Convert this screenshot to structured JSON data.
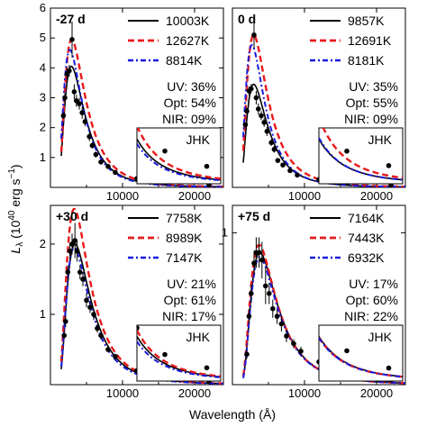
{
  "figure": {
    "xlabel": "Wavelength (Å)",
    "ylabel_main": "L",
    "ylabel_sub": "λ",
    "ylabel_rest": " (10",
    "ylabel_exp": "40",
    "ylabel_unit": " erg s",
    "ylabel_unit_exp": "−1",
    "ylabel_close": ")",
    "series_colors": [
      "#000000",
      "#e8191b",
      "#1a1adc"
    ],
    "inset_label": "JHK"
  },
  "chart_data": [
    {
      "type": "line",
      "epoch": "-27 d",
      "xlim": [
        0,
        24000
      ],
      "ylim": [
        0,
        6
      ],
      "yticks": [
        1,
        2,
        3,
        4,
        5,
        6
      ],
      "xticks": [
        10000,
        20000
      ],
      "xtick_labels": [
        "10000",
        "20000"
      ],
      "series": [
        {
          "name": "10003K",
          "temperature": 10003,
          "peak_lambda": 2900,
          "peak_value": 4.05
        },
        {
          "name": "12627K",
          "temperature": 12627,
          "peak_lambda": 2950,
          "peak_value": 4.95
        },
        {
          "name": "8814K",
          "temperature": 8814,
          "peak_lambda": 2700,
          "peak_value": 4.6
        }
      ],
      "fractions": {
        "UV": "UV: 36%",
        "Opt": "Opt: 54%",
        "NIR": "NIR: 09%"
      },
      "points": [
        [
          1800,
          2.4
        ],
        [
          2000,
          3.0
        ],
        [
          2300,
          3.8
        ],
        [
          2600,
          3.9
        ],
        [
          3000,
          4.95
        ],
        [
          3300,
          3.2
        ],
        [
          3600,
          2.9
        ],
        [
          4000,
          2.8
        ],
        [
          4400,
          2.5
        ],
        [
          4800,
          2.2
        ],
        [
          5400,
          1.7
        ],
        [
          5800,
          1.4
        ],
        [
          6300,
          1.1
        ],
        [
          7000,
          0.85
        ],
        [
          8000,
          0.7
        ],
        [
          9000,
          0.5
        ],
        [
          12000,
          0.3
        ],
        [
          16000,
          0.15
        ],
        [
          22000,
          0.08
        ]
      ],
      "errors": [
        0.1,
        0.15,
        0.2,
        0.2,
        0.6,
        0.25,
        0.2,
        0.2,
        0.2,
        0.15,
        0.15,
        0.1,
        0.1,
        0.08,
        0.05,
        0.05,
        0.03,
        0.02,
        0.02
      ]
    },
    {
      "type": "line",
      "epoch": "0 d",
      "xlim": [
        0,
        24000
      ],
      "ylim": [
        0,
        8
      ],
      "yticks": [],
      "xticks": [
        10000,
        20000
      ],
      "xtick_labels": [
        "10000",
        "20000"
      ],
      "series": [
        {
          "name": "9857K",
          "temperature": 9857,
          "peak_lambda": 2950,
          "peak_value": 4.6
        },
        {
          "name": "12691K",
          "temperature": 12691,
          "peak_lambda": 2950,
          "peak_value": 6.8
        },
        {
          "name": "8181K",
          "temperature": 8181,
          "peak_lambda": 2700,
          "peak_value": 6.35
        }
      ],
      "fractions": {
        "UV": "UV: 35%",
        "Opt": "Opt: 55%",
        "NIR": "NIR: 09%"
      },
      "points": [
        [
          1800,
          2.8
        ],
        [
          2000,
          3.4
        ],
        [
          2300,
          4.3
        ],
        [
          2600,
          4.4
        ],
        [
          3000,
          6.8
        ],
        [
          3300,
          4.0
        ],
        [
          3600,
          3.5
        ],
        [
          4000,
          3.2
        ],
        [
          4400,
          2.9
        ],
        [
          4800,
          2.5
        ],
        [
          5400,
          2.0
        ],
        [
          5800,
          1.7
        ],
        [
          6300,
          1.2
        ],
        [
          7000,
          1.0
        ],
        [
          8000,
          0.75
        ],
        [
          9000,
          0.55
        ],
        [
          12000,
          0.35
        ],
        [
          16000,
          0.18
        ],
        [
          22000,
          0.1
        ]
      ],
      "errors": [
        0.1,
        0.15,
        0.2,
        0.2,
        0.6,
        0.3,
        0.25,
        0.2,
        0.2,
        0.2,
        0.15,
        0.15,
        0.1,
        0.1,
        0.08,
        0.06,
        0.04,
        0.02,
        0.02
      ]
    },
    {
      "type": "line",
      "epoch": "+30 d",
      "xlim": [
        0,
        24000
      ],
      "ylim": [
        0,
        2.55
      ],
      "yticks": [
        1,
        2
      ],
      "xticks": [
        10000,
        20000
      ],
      "xtick_labels": [
        "10000",
        "20000"
      ],
      "series": [
        {
          "name": "7758K",
          "temperature": 7758,
          "peak_lambda": 3400,
          "peak_value": 2.0
        },
        {
          "name": "8989K",
          "temperature": 8989,
          "peak_lambda": 3300,
          "peak_value": 2.5
        },
        {
          "name": "7147K",
          "temperature": 7147,
          "peak_lambda": 3300,
          "peak_value": 1.95
        }
      ],
      "fractions": {
        "UV": "UV: 21%",
        "Opt": "Opt: 61%",
        "NIR": "NIR: 17%"
      },
      "points": [
        [
          1900,
          0.7
        ],
        [
          2100,
          0.9
        ],
        [
          2400,
          1.6
        ],
        [
          2700,
          1.9
        ],
        [
          3000,
          2.0
        ],
        [
          3400,
          2.05
        ],
        [
          3700,
          1.9
        ],
        [
          4100,
          1.6
        ],
        [
          4500,
          1.5
        ],
        [
          5000,
          1.2
        ],
        [
          5500,
          1.1
        ],
        [
          6000,
          1.0
        ],
        [
          6500,
          0.8
        ],
        [
          7000,
          0.7
        ],
        [
          8000,
          0.5
        ],
        [
          9000,
          0.4
        ],
        [
          12000,
          0.2
        ],
        [
          16000,
          0.1
        ],
        [
          22000,
          0.05
        ]
      ],
      "errors": [
        0.05,
        0.08,
        0.1,
        0.12,
        0.15,
        0.25,
        0.15,
        0.1,
        0.1,
        0.1,
        0.08,
        0.08,
        0.06,
        0.06,
        0.04,
        0.04,
        0.02,
        0.02,
        0.01
      ]
    },
    {
      "type": "line",
      "epoch": "+75 d",
      "xlim": [
        0,
        24000
      ],
      "ylim": [
        0,
        1.18
      ],
      "yticks": [
        1
      ],
      "xticks": [
        10000,
        20000
      ],
      "xtick_labels": [
        "10000",
        "20000"
      ],
      "series": [
        {
          "name": "7164K",
          "temperature": 7164,
          "peak_lambda": 3800,
          "peak_value": 0.87
        },
        {
          "name": "7443K",
          "temperature": 7443,
          "peak_lambda": 3700,
          "peak_value": 0.92
        },
        {
          "name": "6932K",
          "temperature": 6932,
          "peak_lambda": 3800,
          "peak_value": 0.84
        }
      ],
      "fractions": {
        "UV": "UV: 17%",
        "Opt": "Opt: 60%",
        "NIR": "NIR: 22%"
      },
      "points": [
        [
          2000,
          0.2
        ],
        [
          2300,
          0.45
        ],
        [
          2600,
          0.6
        ],
        [
          3000,
          0.8
        ],
        [
          3300,
          0.87
        ],
        [
          3700,
          0.87
        ],
        [
          4100,
          0.82
        ],
        [
          4600,
          0.65
        ],
        [
          5100,
          0.6
        ],
        [
          5600,
          0.5
        ],
        [
          6200,
          0.45
        ],
        [
          6800,
          0.4
        ],
        [
          7500,
          0.32
        ],
        [
          8500,
          0.27
        ],
        [
          9500,
          0.22
        ],
        [
          12000,
          0.15
        ],
        [
          16000,
          0.07
        ],
        [
          22000,
          0.03
        ]
      ],
      "errors": [
        0.03,
        0.05,
        0.06,
        0.08,
        0.1,
        0.1,
        0.12,
        0.12,
        0.07,
        0.06,
        0.05,
        0.05,
        0.04,
        0.03,
        0.03,
        0.02,
        0.01,
        0.01
      ]
    }
  ]
}
